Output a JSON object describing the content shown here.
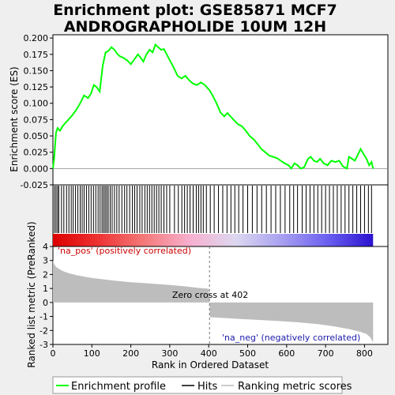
{
  "chart_data": {
    "type": "line",
    "title": [
      "Enrichment plot: GSE85871 MCF7",
      "ANDROGRAPHOLIDE 10UM 12H"
    ],
    "xlabel": "Rank in Ordered Dataset",
    "es_panel": {
      "ylabel": "Enrichment score (ES)",
      "ylim": [
        -0.025,
        0.205
      ],
      "yticks": [
        "-0.025",
        "0.000",
        "0.025",
        "0.050",
        "0.075",
        "0.100",
        "0.125",
        "0.150",
        "0.175",
        "0.200"
      ],
      "line_color": "#00ff00",
      "series_points": [
        [
          0,
          0.0
        ],
        [
          3,
          0.015
        ],
        [
          8,
          0.055
        ],
        [
          12,
          0.062
        ],
        [
          18,
          0.058
        ],
        [
          25,
          0.065
        ],
        [
          32,
          0.07
        ],
        [
          40,
          0.075
        ],
        [
          50,
          0.082
        ],
        [
          60,
          0.09
        ],
        [
          70,
          0.1
        ],
        [
          80,
          0.112
        ],
        [
          90,
          0.108
        ],
        [
          98,
          0.115
        ],
        [
          105,
          0.128
        ],
        [
          112,
          0.125
        ],
        [
          120,
          0.118
        ],
        [
          128,
          0.158
        ],
        [
          135,
          0.178
        ],
        [
          142,
          0.18
        ],
        [
          150,
          0.186
        ],
        [
          158,
          0.182
        ],
        [
          165,
          0.176
        ],
        [
          172,
          0.172
        ],
        [
          180,
          0.17
        ],
        [
          190,
          0.166
        ],
        [
          200,
          0.16
        ],
        [
          210,
          0.168
        ],
        [
          218,
          0.175
        ],
        [
          225,
          0.17
        ],
        [
          232,
          0.164
        ],
        [
          240,
          0.175
        ],
        [
          248,
          0.182
        ],
        [
          256,
          0.178
        ],
        [
          263,
          0.19
        ],
        [
          270,
          0.186
        ],
        [
          278,
          0.182
        ],
        [
          285,
          0.183
        ],
        [
          292,
          0.175
        ],
        [
          300,
          0.166
        ],
        [
          310,
          0.155
        ],
        [
          320,
          0.142
        ],
        [
          330,
          0.138
        ],
        [
          340,
          0.142
        ],
        [
          350,
          0.135
        ],
        [
          360,
          0.13
        ],
        [
          370,
          0.128
        ],
        [
          380,
          0.132
        ],
        [
          390,
          0.128
        ],
        [
          402,
          0.12
        ],
        [
          410,
          0.112
        ],
        [
          420,
          0.1
        ],
        [
          430,
          0.086
        ],
        [
          440,
          0.08
        ],
        [
          448,
          0.085
        ],
        [
          456,
          0.08
        ],
        [
          465,
          0.074
        ],
        [
          475,
          0.068
        ],
        [
          485,
          0.065
        ],
        [
          495,
          0.058
        ],
        [
          505,
          0.05
        ],
        [
          515,
          0.045
        ],
        [
          525,
          0.038
        ],
        [
          535,
          0.03
        ],
        [
          545,
          0.025
        ],
        [
          555,
          0.02
        ],
        [
          565,
          0.018
        ],
        [
          575,
          0.016
        ],
        [
          585,
          0.012
        ],
        [
          595,
          0.008
        ],
        [
          605,
          0.005
        ],
        [
          612,
          0.0
        ],
        [
          620,
          0.008
        ],
        [
          628,
          0.005
        ],
        [
          636,
          0.0
        ],
        [
          645,
          0.002
        ],
        [
          655,
          0.015
        ],
        [
          662,
          0.018
        ],
        [
          670,
          0.012
        ],
        [
          678,
          0.01
        ],
        [
          686,
          0.015
        ],
        [
          695,
          0.008
        ],
        [
          705,
          0.005
        ],
        [
          715,
          0.012
        ],
        [
          725,
          0.01
        ],
        [
          735,
          0.012
        ],
        [
          745,
          0.003
        ],
        [
          755,
          0.0
        ],
        [
          760,
          0.018
        ],
        [
          768,
          0.015
        ],
        [
          775,
          0.012
        ],
        [
          782,
          0.02
        ],
        [
          790,
          0.03
        ],
        [
          798,
          0.022
        ],
        [
          805,
          0.015
        ],
        [
          812,
          0.005
        ],
        [
          818,
          0.01
        ],
        [
          822,
          0.0
        ]
      ]
    },
    "hits": [
      0,
      4,
      8,
      12,
      15,
      22,
      28,
      35,
      41,
      47,
      52,
      58,
      64,
      70,
      75,
      80,
      86,
      92,
      98,
      104,
      110,
      116,
      121,
      126,
      130,
      134,
      138,
      142,
      147,
      152,
      158,
      164,
      170,
      177,
      184,
      190,
      197,
      204,
      210,
      216,
      223,
      229,
      236,
      242,
      248,
      254,
      260,
      266,
      272,
      278,
      285,
      292,
      300,
      312,
      322,
      331,
      338,
      345,
      352,
      360,
      368,
      374,
      380,
      386,
      394,
      404,
      414,
      425,
      436,
      447,
      457,
      467,
      477,
      488,
      500,
      512,
      524,
      536,
      548,
      560,
      572,
      584,
      596,
      608,
      618,
      628,
      640,
      650,
      660,
      670,
      680,
      690,
      700,
      710,
      720,
      730,
      740,
      750,
      760,
      770,
      780,
      790,
      800,
      810,
      818
    ],
    "gradient_colors": [
      "#dd0000",
      "#ee3333",
      "#f47a7a",
      "#f7b0cf",
      "#dcd8f0",
      "#a8a0f0",
      "#6b5ff0",
      "#2a12d0"
    ],
    "metric_panel": {
      "ylabel": "Ranked list metric (PreRanked)",
      "ylim": [
        -3,
        4
      ],
      "yticks": [
        "-3",
        "-2",
        "-1",
        "0",
        "1",
        "2",
        "3",
        "4"
      ],
      "zero_cross": 402,
      "zero_cross_label": "Zero cross at 402",
      "pos_label": "'na_pos' (positively correlated)",
      "neg_label": "'na_neg' (negatively correlated)",
      "profile": [
        [
          0,
          3.0
        ],
        [
          3,
          2.75
        ],
        [
          8,
          2.55
        ],
        [
          15,
          2.4
        ],
        [
          25,
          2.25
        ],
        [
          40,
          2.1
        ],
        [
          60,
          1.95
        ],
        [
          80,
          1.85
        ],
        [
          100,
          1.75
        ],
        [
          130,
          1.65
        ],
        [
          160,
          1.55
        ],
        [
          200,
          1.45
        ],
        [
          250,
          1.35
        ],
        [
          300,
          1.25
        ],
        [
          340,
          1.15
        ],
        [
          370,
          1.05
        ],
        [
          400,
          0.98
        ],
        [
          402,
          0.0
        ],
        [
          403,
          -1.05
        ],
        [
          430,
          -1.1
        ],
        [
          480,
          -1.18
        ],
        [
          530,
          -1.25
        ],
        [
          580,
          -1.33
        ],
        [
          630,
          -1.42
        ],
        [
          680,
          -1.55
        ],
        [
          720,
          -1.7
        ],
        [
          760,
          -1.9
        ],
        [
          790,
          -2.1
        ],
        [
          805,
          -2.25
        ],
        [
          815,
          -2.5
        ],
        [
          822,
          -2.85
        ]
      ]
    },
    "xlim": [
      0,
      822
    ],
    "xaxis_max": 860,
    "xticks": [
      "0",
      "100",
      "200",
      "300",
      "400",
      "500",
      "600",
      "700",
      "800"
    ],
    "legend": [
      "Enrichment profile",
      "Hits",
      "Ranking metric scores"
    ]
  }
}
